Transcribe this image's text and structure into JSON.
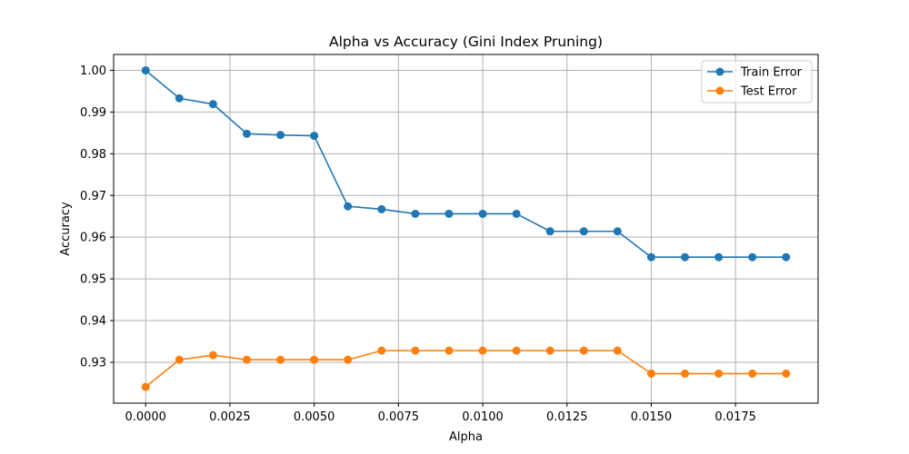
{
  "chart_data": {
    "type": "line",
    "title": "Alpha vs Accuracy (Gini Index Pruning)",
    "xlabel": "Alpha",
    "ylabel": "Accuracy",
    "xlim": [
      -0.00095,
      0.01995
    ],
    "ylim": [
      0.9202,
      1.0038
    ],
    "grid": true,
    "legend_position": "top-right",
    "x": [
      0.0,
      0.001,
      0.002,
      0.003,
      0.004,
      0.005,
      0.006,
      0.007,
      0.008,
      0.009,
      0.01,
      0.011,
      0.012,
      0.013,
      0.014,
      0.015,
      0.016,
      0.017,
      0.018,
      0.019
    ],
    "x_ticks": [
      {
        "value": 0.0,
        "label": "0.0000"
      },
      {
        "value": 0.0025,
        "label": "0.0025"
      },
      {
        "value": 0.005,
        "label": "0.0050"
      },
      {
        "value": 0.0075,
        "label": "0.0075"
      },
      {
        "value": 0.01,
        "label": "0.0100"
      },
      {
        "value": 0.0125,
        "label": "0.0125"
      },
      {
        "value": 0.015,
        "label": "0.0150"
      },
      {
        "value": 0.0175,
        "label": "0.0175"
      }
    ],
    "y_ticks": [
      {
        "value": 0.93,
        "label": "0.93"
      },
      {
        "value": 0.94,
        "label": "0.94"
      },
      {
        "value": 0.95,
        "label": "0.95"
      },
      {
        "value": 0.96,
        "label": "0.96"
      },
      {
        "value": 0.97,
        "label": "0.97"
      },
      {
        "value": 0.98,
        "label": "0.98"
      },
      {
        "value": 0.99,
        "label": "0.99"
      },
      {
        "value": 1.0,
        "label": "1.00"
      }
    ],
    "series": [
      {
        "name": "Train Error",
        "color": "#1f77b4",
        "values": [
          1.0,
          0.9933,
          0.9919,
          0.9848,
          0.9845,
          0.9843,
          0.9674,
          0.9667,
          0.9656,
          0.9656,
          0.9656,
          0.9656,
          0.9614,
          0.9614,
          0.9614,
          0.9552,
          0.9552,
          0.9552,
          0.9552,
          0.9552
        ]
      },
      {
        "name": "Test Error",
        "color": "#ff7f0e",
        "values": [
          0.9241,
          0.9306,
          0.9317,
          0.9306,
          0.9306,
          0.9306,
          0.9306,
          0.9328,
          0.9328,
          0.9328,
          0.9328,
          0.9328,
          0.9328,
          0.9328,
          0.9328,
          0.9273,
          0.9273,
          0.9273,
          0.9273,
          0.9273
        ]
      }
    ]
  }
}
